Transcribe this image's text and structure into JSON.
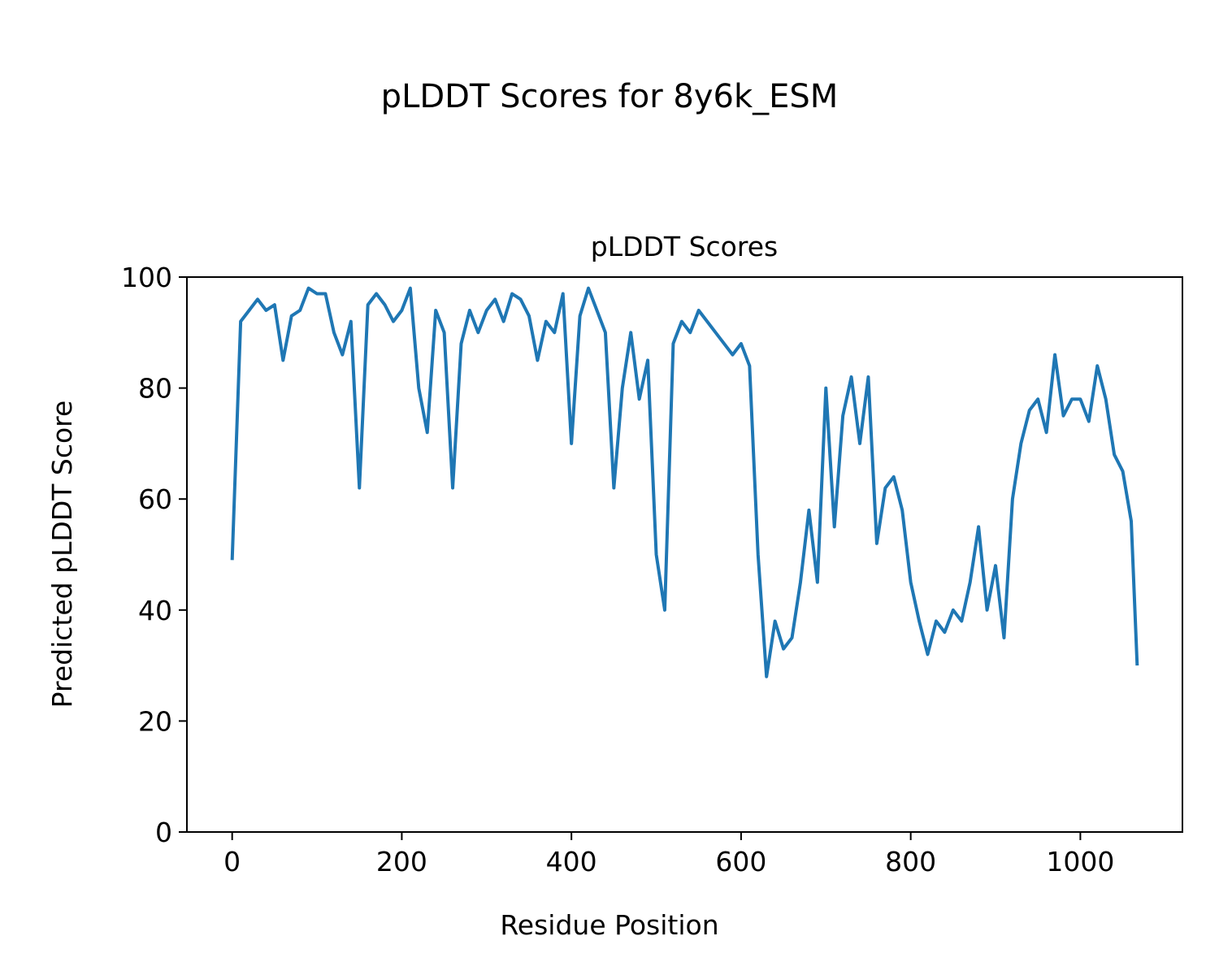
{
  "chart_data": {
    "type": "line",
    "suptitle": "pLDDT Scores for 8y6k_ESM",
    "title": "pLDDT Scores",
    "xlabel": "Residue Position",
    "ylabel": "Predicted pLDDT Score",
    "x": [
      0,
      10,
      20,
      30,
      40,
      50,
      60,
      70,
      80,
      90,
      100,
      110,
      120,
      130,
      140,
      150,
      160,
      170,
      180,
      190,
      200,
      210,
      220,
      230,
      240,
      250,
      260,
      270,
      280,
      290,
      300,
      310,
      320,
      330,
      340,
      350,
      360,
      370,
      380,
      390,
      400,
      410,
      420,
      430,
      440,
      450,
      460,
      470,
      480,
      490,
      500,
      510,
      520,
      530,
      540,
      550,
      560,
      570,
      580,
      590,
      600,
      610,
      620,
      630,
      640,
      650,
      660,
      670,
      680,
      690,
      700,
      710,
      720,
      730,
      740,
      750,
      760,
      770,
      780,
      790,
      800,
      810,
      820,
      830,
      840,
      850,
      860,
      870,
      880,
      890,
      900,
      910,
      920,
      930,
      940,
      950,
      960,
      970,
      980,
      990,
      1000,
      1010,
      1020,
      1030,
      1040,
      1050,
      1060,
      1067
    ],
    "series": [
      {
        "name": "pLDDT",
        "color": "#1f77b4",
        "values": [
          49,
          92,
          94,
          96,
          94,
          95,
          85,
          93,
          94,
          98,
          97,
          97,
          90,
          86,
          92,
          62,
          95,
          97,
          95,
          92,
          94,
          98,
          80,
          72,
          94,
          90,
          62,
          88,
          94,
          90,
          94,
          96,
          92,
          97,
          96,
          93,
          85,
          92,
          90,
          97,
          70,
          93,
          98,
          94,
          90,
          62,
          80,
          90,
          78,
          85,
          50,
          40,
          88,
          92,
          90,
          94,
          92,
          90,
          88,
          86,
          88,
          84,
          50,
          28,
          38,
          33,
          35,
          45,
          58,
          45,
          80,
          55,
          75,
          82,
          70,
          82,
          52,
          62,
          64,
          58,
          45,
          38,
          32,
          38,
          36,
          40,
          38,
          45,
          55,
          40,
          48,
          35,
          60,
          70,
          76,
          78,
          72,
          86,
          75,
          78,
          78,
          74,
          84,
          78,
          68,
          65,
          56,
          30
        ]
      }
    ],
    "xlim": [
      -53.35,
      1120.35
    ],
    "ylim": [
      0,
      100
    ],
    "xticks": [
      0,
      200,
      400,
      600,
      800,
      1000
    ],
    "yticks": [
      0,
      20,
      40,
      60,
      80,
      100
    ]
  }
}
